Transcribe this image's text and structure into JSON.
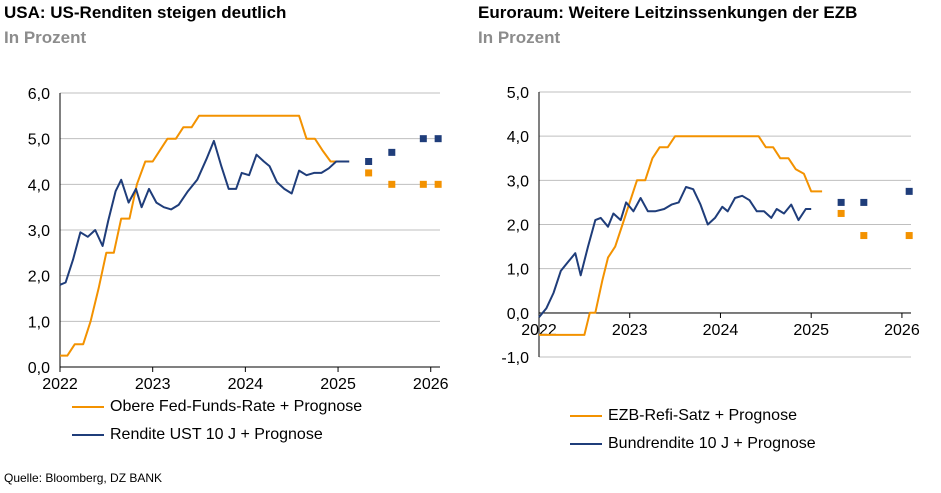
{
  "chart_data": [
    {
      "type": "line",
      "title": "USA: US-Renditen steigen deutlich",
      "subtitle": "In Prozent",
      "ylim": [
        0,
        6
      ],
      "yticks": [
        "0,0",
        "1,0",
        "2,0",
        "3,0",
        "4,0",
        "5,0",
        "6,0"
      ],
      "xlim": [
        2022,
        2026.1
      ],
      "xticks": [
        "2022",
        "2023",
        "2024",
        "2025",
        "2026"
      ],
      "grid": true,
      "legend_position": "bottom",
      "series": [
        {
          "name": "Obere Fed-Funds-Rate + Prognose",
          "color": "#f39200",
          "x": [
            2022.0,
            2022.08,
            2022.16,
            2022.25,
            2022.33,
            2022.42,
            2022.5,
            2022.58,
            2022.66,
            2022.75,
            2022.83,
            2022.92,
            2023.0,
            2023.08,
            2023.16,
            2023.25,
            2023.33,
            2023.42,
            2023.5,
            2023.58,
            2023.66,
            2023.75,
            2023.83,
            2023.92,
            2024.0,
            2024.08,
            2024.16,
            2024.25,
            2024.33,
            2024.42,
            2024.5,
            2024.58,
            2024.66,
            2024.75,
            2024.83,
            2024.92,
            2025.0,
            2025.08,
            2025.12
          ],
          "y": [
            0.25,
            0.25,
            0.5,
            0.5,
            1.0,
            1.75,
            2.5,
            2.5,
            3.25,
            3.25,
            4.0,
            4.5,
            4.5,
            4.75,
            5.0,
            5.0,
            5.25,
            5.25,
            5.5,
            5.5,
            5.5,
            5.5,
            5.5,
            5.5,
            5.5,
            5.5,
            5.5,
            5.5,
            5.5,
            5.5,
            5.5,
            5.5,
            5.0,
            5.0,
            4.75,
            4.5,
            4.5,
            4.5,
            4.5
          ],
          "forecast_x": [
            2025.33,
            2025.58,
            2025.92,
            2026.08
          ],
          "forecast_y": [
            4.25,
            4.0,
            4.0,
            4.0
          ]
        },
        {
          "name": "Rendite UST 10 J + Prognose",
          "color": "#1f3d7a",
          "x": [
            2022.0,
            2022.06,
            2022.14,
            2022.22,
            2022.3,
            2022.38,
            2022.46,
            2022.52,
            2022.6,
            2022.66,
            2022.74,
            2022.82,
            2022.88,
            2022.96,
            2023.04,
            2023.12,
            2023.2,
            2023.28,
            2023.38,
            2023.48,
            2023.58,
            2023.66,
            2023.74,
            2023.82,
            2023.9,
            2023.96,
            2024.04,
            2024.12,
            2024.2,
            2024.26,
            2024.34,
            2024.42,
            2024.5,
            2024.58,
            2024.66,
            2024.74,
            2024.82,
            2024.9,
            2024.98,
            2025.06,
            2025.12
          ],
          "y": [
            1.8,
            1.85,
            2.35,
            2.95,
            2.85,
            3.0,
            2.65,
            3.2,
            3.85,
            4.1,
            3.6,
            3.9,
            3.5,
            3.9,
            3.6,
            3.5,
            3.45,
            3.55,
            3.85,
            4.1,
            4.55,
            4.95,
            4.4,
            3.9,
            3.9,
            4.25,
            4.2,
            4.65,
            4.5,
            4.4,
            4.05,
            3.9,
            3.8,
            4.3,
            4.2,
            4.25,
            4.25,
            4.35,
            4.5,
            4.5,
            4.5
          ],
          "forecast_x": [
            2025.33,
            2025.58,
            2025.92,
            2026.08
          ],
          "forecast_y": [
            4.5,
            4.7,
            5.0,
            5.0
          ]
        }
      ]
    },
    {
      "type": "line",
      "title": "Euroraum: Weitere Leitzinssenkungen der EZB",
      "subtitle": "In Prozent",
      "ylim": [
        -1,
        5
      ],
      "yticks": [
        "-1,0",
        "0,0",
        "1,0",
        "2,0",
        "3,0",
        "4,0",
        "5,0"
      ],
      "xlim": [
        2022,
        2026.1
      ],
      "xticks": [
        "2022",
        "2023",
        "2024",
        "2025",
        "2026"
      ],
      "grid": true,
      "legend_position": "bottom",
      "series": [
        {
          "name": "EZB-Refi-Satz + Prognose",
          "color": "#f39200",
          "x": [
            2022.0,
            2022.1,
            2022.2,
            2022.3,
            2022.4,
            2022.5,
            2022.56,
            2022.62,
            2022.7,
            2022.76,
            2022.84,
            2022.92,
            2023.0,
            2023.08,
            2023.17,
            2023.25,
            2023.33,
            2023.42,
            2023.5,
            2023.58,
            2023.66,
            2023.75,
            2023.83,
            2023.92,
            2024.0,
            2024.08,
            2024.17,
            2024.25,
            2024.33,
            2024.42,
            2024.5,
            2024.58,
            2024.66,
            2024.75,
            2024.83,
            2024.92,
            2025.0,
            2025.08,
            2025.12
          ],
          "y": [
            -0.5,
            -0.5,
            -0.5,
            -0.5,
            -0.5,
            -0.5,
            0.0,
            0.0,
            0.75,
            1.25,
            1.5,
            2.0,
            2.5,
            3.0,
            3.0,
            3.5,
            3.75,
            3.75,
            4.0,
            4.0,
            4.0,
            4.0,
            4.0,
            4.0,
            4.0,
            4.0,
            4.0,
            4.0,
            4.0,
            4.0,
            3.75,
            3.75,
            3.5,
            3.5,
            3.25,
            3.15,
            2.75,
            2.75,
            2.75
          ],
          "forecast_x": [
            2025.33,
            2025.58,
            2026.08
          ],
          "forecast_y": [
            2.25,
            1.75,
            1.75
          ]
        },
        {
          "name": "Bundrendite 10 J + Prognose",
          "color": "#1f3d7a",
          "x": [
            2022.0,
            2022.08,
            2022.16,
            2022.24,
            2022.32,
            2022.4,
            2022.46,
            2022.54,
            2022.62,
            2022.68,
            2022.76,
            2022.82,
            2022.9,
            2022.96,
            2023.04,
            2023.12,
            2023.2,
            2023.28,
            2023.38,
            2023.46,
            2023.54,
            2023.62,
            2023.7,
            2023.78,
            2023.86,
            2023.94,
            2024.02,
            2024.08,
            2024.16,
            2024.24,
            2024.32,
            2024.4,
            2024.48,
            2024.56,
            2024.62,
            2024.7,
            2024.78,
            2024.86,
            2024.94,
            2025.0
          ],
          "y": [
            -0.1,
            0.1,
            0.45,
            0.95,
            1.15,
            1.35,
            0.85,
            1.5,
            2.1,
            2.15,
            1.95,
            2.25,
            2.1,
            2.5,
            2.3,
            2.6,
            2.3,
            2.3,
            2.35,
            2.45,
            2.5,
            2.85,
            2.8,
            2.45,
            2.0,
            2.15,
            2.4,
            2.3,
            2.6,
            2.65,
            2.55,
            2.3,
            2.3,
            2.15,
            2.35,
            2.25,
            2.45,
            2.1,
            2.35,
            2.35
          ],
          "forecast_x": [
            2025.33,
            2025.58,
            2026.08
          ],
          "forecast_y": [
            2.5,
            2.5,
            2.75
          ]
        }
      ]
    }
  ],
  "source": "Quelle: Bloomberg, DZ BANK"
}
